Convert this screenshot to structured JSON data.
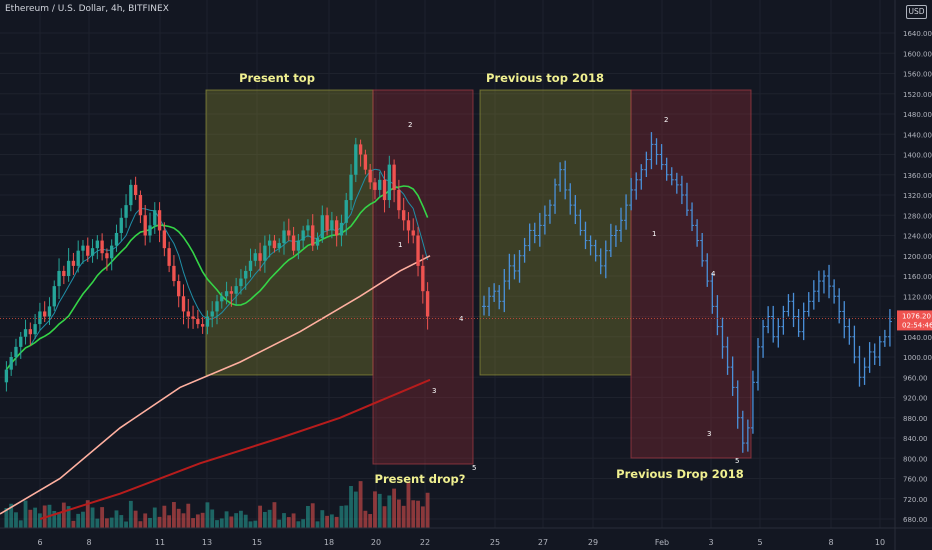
{
  "header": {
    "title": "Ethereum / U.S. Dollar, 4h, BITFINEX",
    "currency": "USD"
  },
  "price_label": {
    "price": "1076.20",
    "countdown": "02:54:46"
  },
  "colors": {
    "background": "#131722",
    "grid": "#1e222d",
    "axis_text": "#b2b5be",
    "bull": "#26a69a",
    "bear": "#ef5350",
    "projection": "#4a90d9",
    "ma_fast": "#1f8fa8",
    "ma_mid": "#35d447",
    "ma_slow": "#ffb0a0",
    "ma_long": "#b71c1c",
    "box_yellow": "rgba(155,155,50,0.30)",
    "box_red": "rgba(165,45,55,0.30)",
    "annotation": "#f0f090",
    "price_line": "#c64b3b"
  },
  "chart_data": {
    "type": "candlestick",
    "y_axis": {
      "ticks": [
        1640,
        1600,
        1560,
        1520,
        1480,
        1440,
        1400,
        1360,
        1320,
        1280,
        1240,
        1200,
        1160,
        1120,
        1080,
        1040,
        1000,
        960,
        920,
        880,
        840,
        800,
        760,
        720,
        680
      ],
      "tick_labels": [
        "1640.00",
        "1600.00",
        "1560.00",
        "1520.00",
        "1480.00",
        "1440.00",
        "1400.00",
        "1360.00",
        "1320.00",
        "1280.00",
        "1240.00",
        "1200.00",
        "1160.00",
        "1120.00",
        "1080.00",
        "1040.00",
        "1000.00",
        "960.00",
        "920.00",
        "880.00",
        "840.00",
        "800.00",
        "760.00",
        "720.00",
        "680.00"
      ],
      "range": [
        660,
        1670
      ]
    },
    "x_axis": {
      "tick_labels": [
        "6",
        "8",
        "11",
        "13",
        "15",
        "18",
        "20",
        "22",
        "25",
        "27",
        "29",
        "Feb",
        "3",
        "5",
        "8",
        "10"
      ]
    },
    "annotations": [
      "Present top",
      "Previous top 2018",
      "Present drop?",
      "Previous Drop 2018"
    ],
    "wave_labels_present": [
      "1",
      "2",
      "3",
      "4",
      "5"
    ],
    "wave_labels_previous": [
      "1",
      "2",
      "3",
      "4",
      "5"
    ],
    "present_candles": {
      "note": "ohlc samples, 4h ETHUSD Bitfinex (price units)",
      "close_series": [
        975,
        1000,
        1020,
        1040,
        1055,
        1045,
        1065,
        1090,
        1080,
        1100,
        1140,
        1170,
        1160,
        1190,
        1180,
        1210,
        1220,
        1200,
        1215,
        1230,
        1205,
        1195,
        1220,
        1245,
        1275,
        1300,
        1340,
        1320,
        1280,
        1240,
        1260,
        1290,
        1250,
        1215,
        1180,
        1150,
        1120,
        1090,
        1080,
        1075,
        1065,
        1060,
        1080,
        1090,
        1110,
        1120,
        1130,
        1125,
        1140,
        1155,
        1170,
        1190,
        1205,
        1190,
        1220,
        1230,
        1215,
        1225,
        1250,
        1240,
        1210,
        1230,
        1250,
        1260,
        1220,
        1235,
        1280,
        1250,
        1270,
        1240,
        1265,
        1310,
        1360,
        1420,
        1400,
        1370,
        1345,
        1330,
        1350,
        1310,
        1380,
        1330,
        1290,
        1270,
        1250,
        1240,
        1180,
        1130,
        1080
      ]
    },
    "projection_bars": {
      "note": "mirrored 2018 fractal path (price units)",
      "path": [
        1100,
        1120,
        1130,
        1110,
        1150,
        1180,
        1170,
        1200,
        1220,
        1250,
        1240,
        1260,
        1280,
        1300,
        1340,
        1370,
        1330,
        1300,
        1280,
        1250,
        1230,
        1220,
        1200,
        1180,
        1210,
        1240,
        1250,
        1270,
        1300,
        1330,
        1350,
        1370,
        1390,
        1420,
        1400,
        1380,
        1360,
        1350,
        1340,
        1320,
        1290,
        1260,
        1230,
        1190,
        1150,
        1100,
        1060,
        1020,
        980,
        940,
        880,
        830,
        860,
        950,
        1020,
        1060,
        1080,
        1040,
        1060,
        1090,
        1110,
        1080,
        1050,
        1090,
        1110,
        1130,
        1150,
        1160,
        1140,
        1120,
        1090,
        1060,
        1040,
        1000,
        960,
        980,
        1010,
        1000,
        1030,
        1040,
        1070
      ]
    },
    "moving_averages": [
      "fast",
      "mid",
      "slow",
      "long"
    ]
  }
}
